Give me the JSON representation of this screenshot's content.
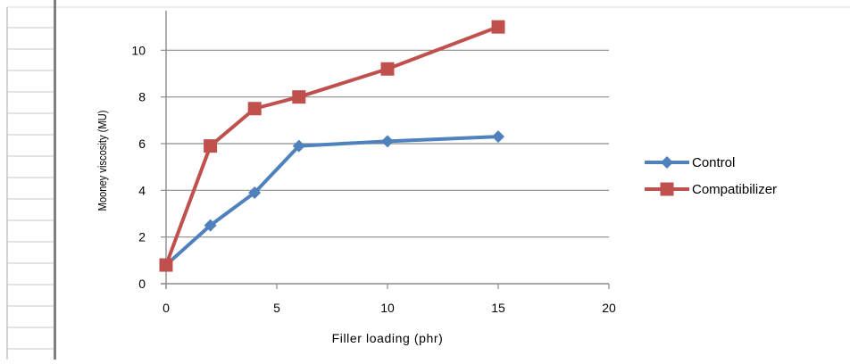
{
  "chart_data": {
    "type": "line",
    "title": "",
    "xlabel": "Filler loading (phr)",
    "ylabel": "Mooney viscosity (MU)",
    "xlim": [
      0,
      20
    ],
    "ylim": [
      0,
      12
    ],
    "x_ticks": [
      0,
      5,
      10,
      15,
      20
    ],
    "y_ticks": [
      0,
      2,
      4,
      6,
      8,
      10
    ],
    "x_tick_labels": [
      "0",
      "5",
      "10",
      "15",
      "20"
    ],
    "y_tick_labels": [
      "0",
      "2",
      "4",
      "6",
      "8",
      "10"
    ],
    "grid": "horizontal",
    "legend_position": "right",
    "series": [
      {
        "name": "Control",
        "marker": "diamond",
        "color": "#4f81bd",
        "x": [
          0,
          2,
          4,
          6,
          10,
          15
        ],
        "y": [
          0.8,
          2.5,
          3.9,
          5.9,
          6.1,
          6.3
        ]
      },
      {
        "name": "Compatibilizer",
        "marker": "square",
        "color": "#c0504d",
        "x": [
          0,
          2,
          4,
          6,
          10,
          15
        ],
        "y": [
          0.8,
          5.9,
          7.5,
          8.0,
          9.2,
          11.0
        ]
      }
    ]
  },
  "colors": {
    "gridline": "#8c8c8c",
    "axis": "#8c8c8c",
    "frame": "#a6a6a6",
    "left_bar": "#7f7f7f"
  }
}
